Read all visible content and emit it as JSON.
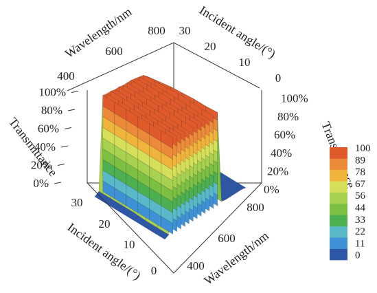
{
  "chart_data": {
    "type": "surface3d",
    "title": "",
    "x_axis": {
      "label": "Wavelength/nm",
      "range": [
        400,
        900
      ],
      "ticks": [
        "400",
        "600",
        "800"
      ]
    },
    "y_axis": {
      "label": "Incident angle/(°)",
      "range": [
        0,
        30
      ],
      "ticks_left": [
        "30",
        "20",
        "10",
        "0"
      ],
      "ticks_right": [
        "30",
        "20",
        "10",
        "0"
      ]
    },
    "z_axis": {
      "label": "Transmittance",
      "range": [
        0,
        100
      ],
      "unit": "%",
      "ticks": [
        "0%",
        "20%",
        "40%",
        "60%",
        "80%",
        "100%"
      ]
    },
    "colorbar": {
      "ticks": [
        "100",
        "89",
        "78",
        "67",
        "56",
        "44",
        "33",
        "22",
        "11",
        "0"
      ],
      "colors": [
        "#2e57a8",
        "#3f91d6",
        "#5ab9c9",
        "#4caf50",
        "#7bc043",
        "#a8d14f",
        "#d6df5a",
        "#f0b43c",
        "#ec8a3a",
        "#e05a2c"
      ]
    },
    "wavelength_nm": [
      400,
      425,
      450,
      475,
      500,
      525,
      550,
      575,
      600,
      625,
      650,
      675,
      700,
      725,
      750,
      775,
      800,
      825,
      850,
      875,
      900
    ],
    "incident_angle_deg": [
      0,
      5,
      10,
      15,
      20,
      25,
      30
    ],
    "transmittance_percent_by_angle": [
      [
        0,
        2,
        100,
        99,
        98,
        97,
        96,
        97,
        98,
        97,
        96,
        95,
        96,
        97,
        2,
        1,
        1,
        1,
        1,
        1,
        0
      ],
      [
        0,
        2,
        100,
        99,
        98,
        97,
        96,
        97,
        98,
        97,
        96,
        95,
        96,
        96,
        2,
        1,
        1,
        1,
        1,
        1,
        0
      ],
      [
        0,
        2,
        100,
        99,
        98,
        97,
        97,
        98,
        98,
        97,
        96,
        96,
        97,
        96,
        2,
        1,
        1,
        1,
        1,
        1,
        0
      ],
      [
        0,
        3,
        100,
        99,
        98,
        98,
        97,
        98,
        97,
        96,
        97,
        96,
        97,
        95,
        3,
        1,
        1,
        1,
        1,
        1,
        0
      ],
      [
        0,
        3,
        100,
        99,
        99,
        98,
        97,
        98,
        97,
        96,
        97,
        96,
        96,
        94,
        3,
        1,
        1,
        1,
        1,
        1,
        0
      ],
      [
        0,
        3,
        100,
        99,
        99,
        98,
        98,
        98,
        97,
        97,
        97,
        96,
        95,
        92,
        3,
        1,
        1,
        1,
        1,
        1,
        0
      ],
      [
        0,
        3,
        100,
        99,
        99,
        98,
        98,
        97,
        97,
        97,
        96,
        95,
        94,
        90,
        3,
        1,
        1,
        1,
        1,
        1,
        0
      ]
    ]
  }
}
